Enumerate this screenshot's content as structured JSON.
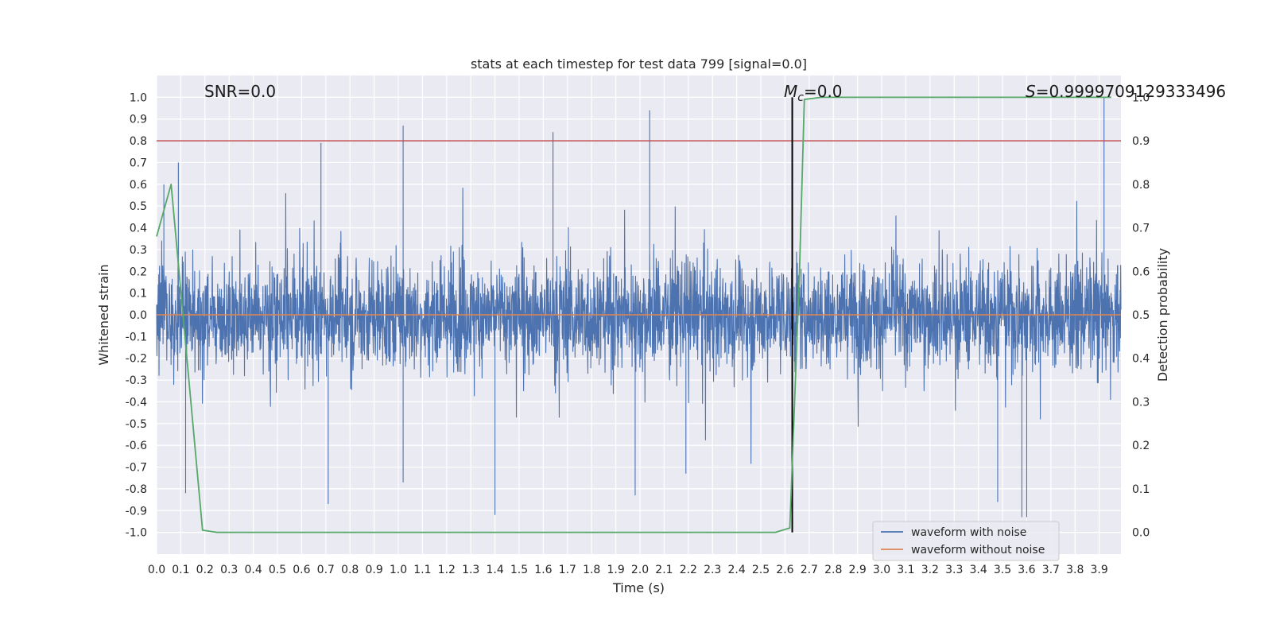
{
  "chart_data": {
    "type": "line",
    "title": "stats at each timestep for test data 799 [signal=0.0]",
    "xlabel": "Time (s)",
    "ylabel": "Whitened strain",
    "y2label": "Detection probability",
    "xlim": [
      0.0,
      3.99
    ],
    "ylim": [
      -1.1,
      1.1
    ],
    "y2lim": [
      -0.05,
      1.05
    ],
    "x_ticks": [
      "0.0",
      "0.1",
      "0.2",
      "0.3",
      "0.4",
      "0.5",
      "0.6",
      "0.7",
      "0.8",
      "0.9",
      "1.0",
      "1.1",
      "1.2",
      "1.3",
      "1.4",
      "1.5",
      "1.6",
      "1.7",
      "1.8",
      "1.9",
      "2.0",
      "2.1",
      "2.2",
      "2.3",
      "2.4",
      "2.5",
      "2.6",
      "2.7",
      "2.8",
      "2.9",
      "3.0",
      "3.1",
      "3.2",
      "3.3",
      "3.4",
      "3.5",
      "3.6",
      "3.7",
      "3.8",
      "3.9"
    ],
    "y_ticks": [
      "1.0",
      "0.9",
      "0.8",
      "0.7",
      "0.6",
      "0.5",
      "0.4",
      "0.3",
      "0.2",
      "0.1",
      "0.0",
      "-0.1",
      "-0.2",
      "-0.3",
      "-0.4",
      "-0.5",
      "-0.6",
      "-0.7",
      "-0.8",
      "-0.9",
      "-1.0"
    ],
    "y2_ticks": [
      "1.0",
      "0.9",
      "0.8",
      "0.7",
      "0.6",
      "0.5",
      "0.4",
      "0.3",
      "0.2",
      "0.1",
      "0.0"
    ],
    "grid": true,
    "legend_position": "lower-right",
    "annotations": {
      "snr": "SNR=0.0",
      "mc_symbol": "M",
      "mc_sub": "c",
      "mc_value": "=0.0",
      "s_symbol": "S",
      "s_value": "=0.9999709129333496"
    },
    "series": [
      {
        "name": "waveform with noise",
        "color": "#4c72b0",
        "axis": "left",
        "note": "dense whitened noise, mostly within ±0.4 with spikes",
        "spikes": [
          {
            "x": 0.03,
            "y": 0.6
          },
          {
            "x": 0.09,
            "y": 0.7
          },
          {
            "x": 0.12,
            "y": -0.82
          },
          {
            "x": 0.68,
            "y": 0.79
          },
          {
            "x": 0.71,
            "y": -0.87
          },
          {
            "x": 1.02,
            "y": 0.87
          },
          {
            "x": 1.02,
            "y": -0.77
          },
          {
            "x": 1.4,
            "y": -0.92
          },
          {
            "x": 1.64,
            "y": 0.84
          },
          {
            "x": 1.98,
            "y": -0.83
          },
          {
            "x": 2.04,
            "y": 0.94
          },
          {
            "x": 2.19,
            "y": -0.73
          },
          {
            "x": 3.48,
            "y": -0.86
          },
          {
            "x": 3.58,
            "y": -0.93
          },
          {
            "x": 3.6,
            "y": -0.93
          },
          {
            "x": 3.92,
            "y": 1.0
          }
        ]
      },
      {
        "name": "waveform without noise",
        "color": "#dd8452",
        "axis": "left",
        "points": [
          {
            "x": 0.0,
            "y": 0.0
          },
          {
            "x": 3.99,
            "y": 0.0
          }
        ]
      },
      {
        "name": "detection probability",
        "color": "#55a868",
        "axis": "right",
        "points": [
          {
            "x": 0.0,
            "y": 0.68
          },
          {
            "x": 0.06,
            "y": 0.8
          },
          {
            "x": 0.19,
            "y": 0.005
          },
          {
            "x": 0.25,
            "y": 0.0
          },
          {
            "x": 1.0,
            "y": 0.0
          },
          {
            "x": 2.2,
            "y": 0.0
          },
          {
            "x": 2.56,
            "y": 0.0
          },
          {
            "x": 2.62,
            "y": 0.01
          },
          {
            "x": 2.66,
            "y": 0.6
          },
          {
            "x": 2.68,
            "y": 0.995
          },
          {
            "x": 2.75,
            "y": 1.0
          },
          {
            "x": 3.95,
            "y": 1.0
          }
        ]
      }
    ],
    "reference_lines": [
      {
        "orientation": "horizontal",
        "axis": "right",
        "value": 0.9,
        "color": "#c44e52"
      },
      {
        "orientation": "vertical",
        "value": 2.63,
        "color": "#000000",
        "y2_range": [
          0.0,
          1.0
        ]
      }
    ]
  }
}
